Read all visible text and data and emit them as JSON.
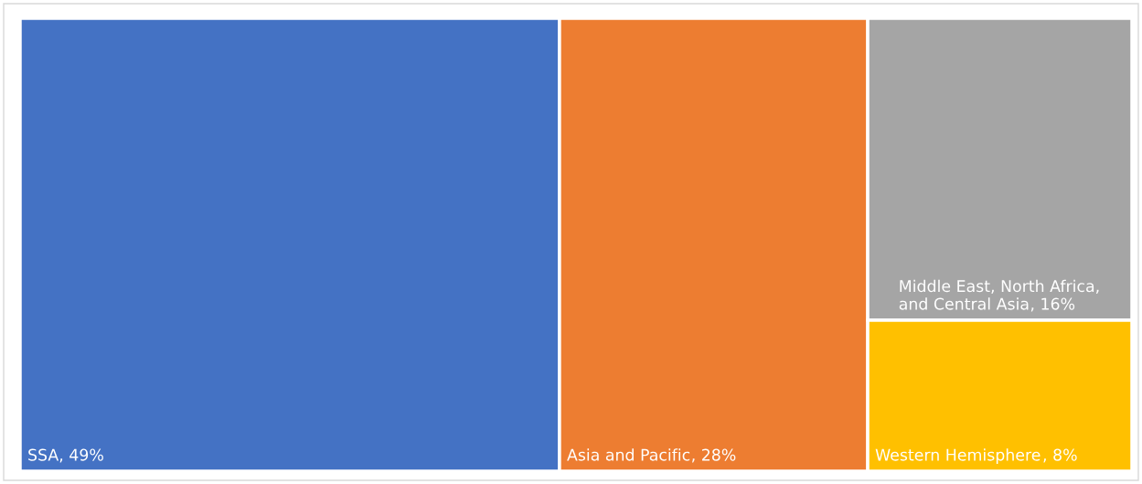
{
  "chart_data": {
    "type": "other",
    "categories": [
      "SSA",
      "Asia and Pacific",
      "Middle East, North Africa, and Central Asia",
      "Western Hemisphere"
    ],
    "values": [
      49,
      28,
      16,
      8
    ],
    "value_labels": [
      ", 49%",
      ", 28%",
      ", 16%",
      ", 8%"
    ],
    "colors": [
      "#4472c4",
      "#ed7d31",
      "#a5a5a5",
      "#ffc000"
    ]
  }
}
